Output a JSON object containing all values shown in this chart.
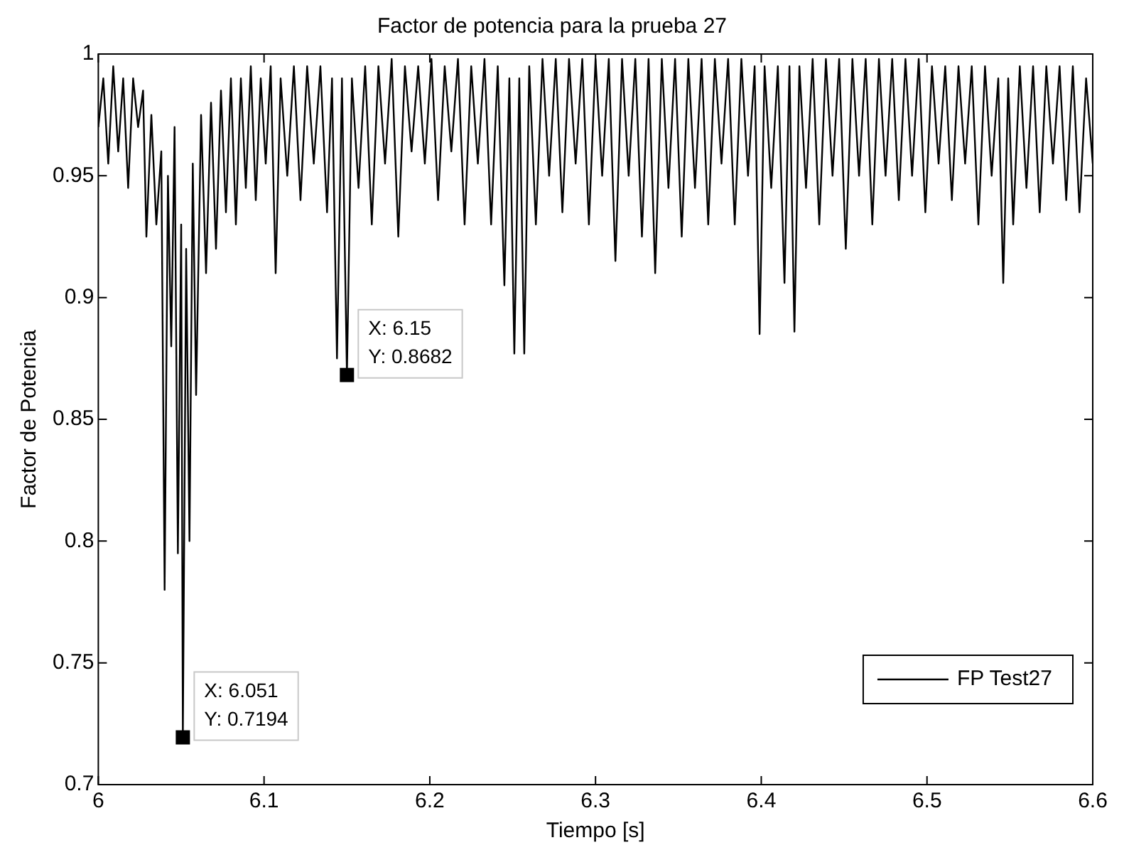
{
  "chart_data": {
    "type": "line",
    "title": "Factor de potencia para la prueba 27",
    "xlabel": "Tiempo [s]",
    "ylabel": "Factor de Potencia",
    "xlim": [
      6,
      6.6
    ],
    "xticks": [
      6,
      6.1,
      6.2,
      6.3,
      6.4,
      6.5,
      6.6
    ],
    "ylim": [
      0.7,
      1
    ],
    "yticks": [
      0.7,
      0.75,
      0.8,
      0.85,
      0.9,
      0.95,
      1
    ],
    "grid": false,
    "legend": "bottom right",
    "marker": "none",
    "line_style": "solid",
    "annotations": [
      {
        "text": "X: 6.051\nY: 0.7194",
        "x": 6.051,
        "y": 0.7194
      },
      {
        "text": "X: 6.15\nY: 0.8682",
        "x": 6.15,
        "y": 0.8682
      }
    ],
    "series": [
      {
        "name": "FP Test27",
        "color": "#000000",
        "x": [
          6.0,
          6.003,
          6.006,
          6.009,
          6.012,
          6.015,
          6.018,
          6.021,
          6.024,
          6.027,
          6.029,
          6.032,
          6.035,
          6.038,
          6.04,
          6.042,
          6.044,
          6.046,
          6.048,
          6.05,
          6.051,
          6.053,
          6.055,
          6.057,
          6.059,
          6.062,
          6.065,
          6.068,
          6.071,
          6.074,
          6.077,
          6.08,
          6.083,
          6.086,
          6.089,
          6.092,
          6.095,
          6.098,
          6.101,
          6.104,
          6.107,
          6.11,
          6.114,
          6.118,
          6.122,
          6.126,
          6.13,
          6.134,
          6.138,
          6.141,
          6.144,
          6.147,
          6.15,
          6.153,
          6.157,
          6.161,
          6.165,
          6.169,
          6.173,
          6.177,
          6.181,
          6.185,
          6.189,
          6.193,
          6.197,
          6.201,
          6.205,
          6.209,
          6.213,
          6.217,
          6.221,
          6.225,
          6.229,
          6.233,
          6.237,
          6.241,
          6.245,
          6.248,
          6.251,
          6.254,
          6.257,
          6.26,
          6.264,
          6.268,
          6.272,
          6.276,
          6.28,
          6.284,
          6.288,
          6.292,
          6.296,
          6.3,
          6.304,
          6.308,
          6.312,
          6.316,
          6.32,
          6.324,
          6.328,
          6.332,
          6.336,
          6.34,
          6.344,
          6.348,
          6.352,
          6.356,
          6.36,
          6.364,
          6.368,
          6.372,
          6.376,
          6.38,
          6.384,
          6.388,
          6.392,
          6.396,
          6.399,
          6.402,
          6.406,
          6.41,
          6.414,
          6.417,
          6.42,
          6.423,
          6.427,
          6.431,
          6.435,
          6.439,
          6.443,
          6.447,
          6.451,
          6.455,
          6.459,
          6.463,
          6.467,
          6.471,
          6.475,
          6.479,
          6.483,
          6.487,
          6.491,
          6.495,
          6.499,
          6.503,
          6.507,
          6.511,
          6.515,
          6.519,
          6.523,
          6.527,
          6.531,
          6.535,
          6.539,
          6.543,
          6.546,
          6.549,
          6.552,
          6.556,
          6.56,
          6.564,
          6.568,
          6.572,
          6.576,
          6.58,
          6.584,
          6.588,
          6.592,
          6.596,
          6.6
        ],
        "values": [
          0.97,
          0.99,
          0.955,
          0.995,
          0.96,
          0.99,
          0.945,
          0.99,
          0.97,
          0.985,
          0.925,
          0.975,
          0.93,
          0.96,
          0.78,
          0.95,
          0.88,
          0.97,
          0.795,
          0.93,
          0.7194,
          0.92,
          0.8,
          0.955,
          0.86,
          0.975,
          0.91,
          0.98,
          0.92,
          0.985,
          0.935,
          0.99,
          0.93,
          0.99,
          0.945,
          0.995,
          0.94,
          0.99,
          0.955,
          0.995,
          0.91,
          0.99,
          0.95,
          0.995,
          0.94,
          0.995,
          0.955,
          0.995,
          0.935,
          0.99,
          0.875,
          0.99,
          0.8682,
          0.99,
          0.945,
          0.995,
          0.93,
          0.995,
          0.955,
          0.998,
          0.925,
          0.995,
          0.96,
          0.995,
          0.955,
          0.998,
          0.94,
          0.995,
          0.96,
          0.998,
          0.93,
          0.995,
          0.955,
          0.998,
          0.93,
          0.995,
          0.905,
          0.99,
          0.877,
          0.99,
          0.877,
          0.995,
          0.93,
          0.998,
          0.95,
          0.998,
          0.935,
          0.998,
          0.955,
          0.998,
          0.93,
          0.998,
          0.95,
          0.998,
          0.915,
          0.998,
          0.95,
          0.998,
          0.925,
          0.998,
          0.91,
          0.998,
          0.945,
          0.998,
          0.925,
          0.998,
          0.945,
          0.998,
          0.93,
          0.998,
          0.955,
          0.998,
          0.93,
          0.998,
          0.95,
          0.995,
          0.885,
          0.995,
          0.945,
          0.995,
          0.906,
          0.995,
          0.886,
          0.995,
          0.945,
          0.998,
          0.93,
          0.998,
          0.95,
          0.998,
          0.92,
          0.998,
          0.95,
          0.998,
          0.93,
          0.998,
          0.95,
          0.998,
          0.94,
          0.998,
          0.95,
          0.998,
          0.935,
          0.995,
          0.955,
          0.995,
          0.94,
          0.995,
          0.955,
          0.995,
          0.93,
          0.995,
          0.95,
          0.99,
          0.906,
          0.99,
          0.93,
          0.995,
          0.945,
          0.995,
          0.935,
          0.995,
          0.955,
          0.995,
          0.94,
          0.995,
          0.935,
          0.99,
          0.955
        ]
      }
    ]
  }
}
